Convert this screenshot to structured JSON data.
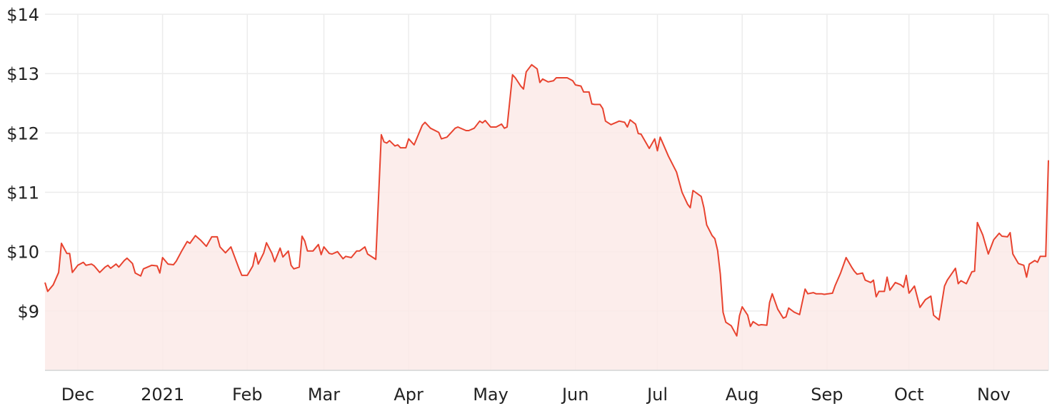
{
  "chart_data": {
    "type": "area",
    "title": "",
    "xlabel": "",
    "ylabel": "",
    "ylim": [
      8,
      14
    ],
    "y_ticks": [
      {
        "value": 9,
        "label": "$9"
      },
      {
        "value": 10,
        "label": "$10"
      },
      {
        "value": 11,
        "label": "$11"
      },
      {
        "value": 12,
        "label": "$12"
      },
      {
        "value": 13,
        "label": "$13"
      },
      {
        "value": 14,
        "label": "$14"
      }
    ],
    "x_ticks": [
      {
        "date": "2020-12-01",
        "label": "Dec"
      },
      {
        "date": "2021-01-01",
        "label": "2021"
      },
      {
        "date": "2021-02-01",
        "label": "Feb"
      },
      {
        "date": "2021-03-01",
        "label": "Mar"
      },
      {
        "date": "2021-04-01",
        "label": "Apr"
      },
      {
        "date": "2021-05-01",
        "label": "May"
      },
      {
        "date": "2021-06-01",
        "label": "Jun"
      },
      {
        "date": "2021-07-01",
        "label": "Jul"
      },
      {
        "date": "2021-08-01",
        "label": "Aug"
      },
      {
        "date": "2021-09-01",
        "label": "Sep"
      },
      {
        "date": "2021-10-01",
        "label": "Oct"
      },
      {
        "date": "2021-11-01",
        "label": "Nov"
      }
    ],
    "grid": true,
    "colors": {
      "line": "#e8432f",
      "fill": "#fbeae8",
      "grid": "#ececec",
      "axis": "#dddddd"
    },
    "points": [
      [
        "2020-11-19",
        9.48
      ],
      [
        "2020-11-20",
        9.33
      ],
      [
        "2020-11-22",
        9.44
      ],
      [
        "2020-11-24",
        9.65
      ],
      [
        "2020-11-25",
        10.14
      ],
      [
        "2020-11-27",
        9.97
      ],
      [
        "2020-11-28",
        9.97
      ],
      [
        "2020-11-29",
        9.65
      ],
      [
        "2020-12-01",
        9.77
      ],
      [
        "2020-12-03",
        9.82
      ],
      [
        "2020-12-04",
        9.77
      ],
      [
        "2020-12-06",
        9.79
      ],
      [
        "2020-12-07",
        9.76
      ],
      [
        "2020-12-09",
        9.65
      ],
      [
        "2020-12-11",
        9.74
      ],
      [
        "2020-12-12",
        9.77
      ],
      [
        "2020-12-13",
        9.72
      ],
      [
        "2020-12-15",
        9.79
      ],
      [
        "2020-12-16",
        9.74
      ],
      [
        "2020-12-18",
        9.85
      ],
      [
        "2020-12-19",
        9.89
      ],
      [
        "2020-12-21",
        9.8
      ],
      [
        "2020-12-22",
        9.64
      ],
      [
        "2020-12-24",
        9.59
      ],
      [
        "2020-12-25",
        9.71
      ],
      [
        "2020-12-28",
        9.77
      ],
      [
        "2020-12-30",
        9.76
      ],
      [
        "2020-12-31",
        9.64
      ],
      [
        "2021-01-01",
        9.9
      ],
      [
        "2021-01-03",
        9.79
      ],
      [
        "2021-01-05",
        9.78
      ],
      [
        "2021-01-06",
        9.84
      ],
      [
        "2021-01-08",
        10.01
      ],
      [
        "2021-01-10",
        10.17
      ],
      [
        "2021-01-11",
        10.14
      ],
      [
        "2021-01-13",
        10.27
      ],
      [
        "2021-01-15",
        10.19
      ],
      [
        "2021-01-17",
        10.09
      ],
      [
        "2021-01-19",
        10.25
      ],
      [
        "2021-01-21",
        10.25
      ],
      [
        "2021-01-22",
        10.08
      ],
      [
        "2021-01-24",
        9.98
      ],
      [
        "2021-01-26",
        10.08
      ],
      [
        "2021-01-29",
        9.71
      ],
      [
        "2021-01-30",
        9.6
      ],
      [
        "2021-02-01",
        9.6
      ],
      [
        "2021-02-03",
        9.76
      ],
      [
        "2021-02-04",
        9.98
      ],
      [
        "2021-02-05",
        9.79
      ],
      [
        "2021-02-07",
        9.98
      ],
      [
        "2021-02-08",
        10.15
      ],
      [
        "2021-02-10",
        9.97
      ],
      [
        "2021-02-11",
        9.83
      ],
      [
        "2021-02-13",
        10.06
      ],
      [
        "2021-02-14",
        9.91
      ],
      [
        "2021-02-16",
        10.01
      ],
      [
        "2021-02-17",
        9.77
      ],
      [
        "2021-02-18",
        9.71
      ],
      [
        "2021-02-20",
        9.74
      ],
      [
        "2021-02-21",
        10.26
      ],
      [
        "2021-02-22",
        10.18
      ],
      [
        "2021-02-23",
        10.01
      ],
      [
        "2021-02-25",
        10.01
      ],
      [
        "2021-02-27",
        10.12
      ],
      [
        "2021-02-28",
        9.95
      ],
      [
        "2021-03-01",
        10.08
      ],
      [
        "2021-03-03",
        9.97
      ],
      [
        "2021-03-04",
        9.96
      ],
      [
        "2021-03-06",
        10.0
      ],
      [
        "2021-03-08",
        9.88
      ],
      [
        "2021-03-09",
        9.92
      ],
      [
        "2021-03-11",
        9.9
      ],
      [
        "2021-03-13",
        10.01
      ],
      [
        "2021-03-14",
        10.01
      ],
      [
        "2021-03-16",
        10.08
      ],
      [
        "2021-03-17",
        9.96
      ],
      [
        "2021-03-19",
        9.9
      ],
      [
        "2021-03-20",
        9.87
      ],
      [
        "2021-03-22",
        11.97
      ],
      [
        "2021-03-23",
        11.85
      ],
      [
        "2021-03-24",
        11.83
      ],
      [
        "2021-03-25",
        11.87
      ],
      [
        "2021-03-27",
        11.78
      ],
      [
        "2021-03-28",
        11.8
      ],
      [
        "2021-03-29",
        11.75
      ],
      [
        "2021-03-31",
        11.75
      ],
      [
        "2021-04-01",
        11.9
      ],
      [
        "2021-04-03",
        11.8
      ],
      [
        "2021-04-06",
        12.13
      ],
      [
        "2021-04-07",
        12.18
      ],
      [
        "2021-04-09",
        12.08
      ],
      [
        "2021-04-12",
        12.01
      ],
      [
        "2021-04-13",
        11.9
      ],
      [
        "2021-04-15",
        11.93
      ],
      [
        "2021-04-18",
        12.08
      ],
      [
        "2021-04-19",
        12.1
      ],
      [
        "2021-04-22",
        12.04
      ],
      [
        "2021-04-23",
        12.04
      ],
      [
        "2021-04-25",
        12.08
      ],
      [
        "2021-04-27",
        12.2
      ],
      [
        "2021-04-28",
        12.17
      ],
      [
        "2021-04-29",
        12.21
      ],
      [
        "2021-05-01",
        12.1
      ],
      [
        "2021-05-03",
        12.1
      ],
      [
        "2021-05-05",
        12.15
      ],
      [
        "2021-05-06",
        12.08
      ],
      [
        "2021-05-07",
        12.1
      ],
      [
        "2021-05-09",
        12.98
      ],
      [
        "2021-05-10",
        12.93
      ],
      [
        "2021-05-12",
        12.79
      ],
      [
        "2021-05-13",
        12.74
      ],
      [
        "2021-05-14",
        13.03
      ],
      [
        "2021-05-16",
        13.15
      ],
      [
        "2021-05-18",
        13.08
      ],
      [
        "2021-05-19",
        12.85
      ],
      [
        "2021-05-20",
        12.91
      ],
      [
        "2021-05-22",
        12.86
      ],
      [
        "2021-05-24",
        12.88
      ],
      [
        "2021-05-25",
        12.93
      ],
      [
        "2021-05-29",
        12.93
      ],
      [
        "2021-05-31",
        12.88
      ],
      [
        "2021-06-01",
        12.81
      ],
      [
        "2021-06-03",
        12.79
      ],
      [
        "2021-06-04",
        12.69
      ],
      [
        "2021-06-06",
        12.69
      ],
      [
        "2021-06-07",
        12.49
      ],
      [
        "2021-06-08",
        12.48
      ],
      [
        "2021-06-10",
        12.48
      ],
      [
        "2021-06-11",
        12.41
      ],
      [
        "2021-06-12",
        12.2
      ],
      [
        "2021-06-14",
        12.14
      ],
      [
        "2021-06-16",
        12.18
      ],
      [
        "2021-06-17",
        12.2
      ],
      [
        "2021-06-19",
        12.18
      ],
      [
        "2021-06-20",
        12.1
      ],
      [
        "2021-06-21",
        12.22
      ],
      [
        "2021-06-23",
        12.15
      ],
      [
        "2021-06-24",
        11.99
      ],
      [
        "2021-06-25",
        11.98
      ],
      [
        "2021-06-28",
        11.74
      ],
      [
        "2021-06-30",
        11.9
      ],
      [
        "2021-07-01",
        11.7
      ],
      [
        "2021-07-02",
        11.93
      ],
      [
        "2021-07-05",
        11.61
      ],
      [
        "2021-07-08",
        11.34
      ],
      [
        "2021-07-10",
        11.0
      ],
      [
        "2021-07-12",
        10.8
      ],
      [
        "2021-07-13",
        10.74
      ],
      [
        "2021-07-14",
        11.03
      ],
      [
        "2021-07-17",
        10.93
      ],
      [
        "2021-07-18",
        10.74
      ],
      [
        "2021-07-19",
        10.45
      ],
      [
        "2021-07-21",
        10.27
      ],
      [
        "2021-07-22",
        10.22
      ],
      [
        "2021-07-23",
        10.02
      ],
      [
        "2021-07-24",
        9.62
      ],
      [
        "2021-07-25",
        8.98
      ],
      [
        "2021-07-26",
        8.81
      ],
      [
        "2021-07-28",
        8.75
      ],
      [
        "2021-07-30",
        8.58
      ],
      [
        "2021-07-31",
        8.92
      ],
      [
        "2021-08-01",
        9.07
      ],
      [
        "2021-08-03",
        8.93
      ],
      [
        "2021-08-04",
        8.74
      ],
      [
        "2021-08-05",
        8.82
      ],
      [
        "2021-08-07",
        8.76
      ],
      [
        "2021-08-08",
        8.77
      ],
      [
        "2021-08-10",
        8.76
      ],
      [
        "2021-08-11",
        9.14
      ],
      [
        "2021-08-12",
        9.29
      ],
      [
        "2021-08-14",
        9.03
      ],
      [
        "2021-08-16",
        8.88
      ],
      [
        "2021-08-17",
        8.9
      ],
      [
        "2021-08-18",
        9.05
      ],
      [
        "2021-08-20",
        8.98
      ],
      [
        "2021-08-22",
        8.94
      ],
      [
        "2021-08-24",
        9.37
      ],
      [
        "2021-08-25",
        9.29
      ],
      [
        "2021-08-27",
        9.31
      ],
      [
        "2021-08-28",
        9.29
      ],
      [
        "2021-08-30",
        9.29
      ],
      [
        "2021-08-31",
        9.28
      ],
      [
        "2021-09-03",
        9.3
      ],
      [
        "2021-09-04",
        9.43
      ],
      [
        "2021-09-06",
        9.64
      ],
      [
        "2021-09-08",
        9.9
      ],
      [
        "2021-09-10",
        9.74
      ],
      [
        "2021-09-11",
        9.67
      ],
      [
        "2021-09-12",
        9.62
      ],
      [
        "2021-09-14",
        9.64
      ],
      [
        "2021-09-15",
        9.52
      ],
      [
        "2021-09-17",
        9.48
      ],
      [
        "2021-09-18",
        9.52
      ],
      [
        "2021-09-19",
        9.24
      ],
      [
        "2021-09-20",
        9.33
      ],
      [
        "2021-09-22",
        9.33
      ],
      [
        "2021-09-23",
        9.57
      ],
      [
        "2021-09-24",
        9.35
      ],
      [
        "2021-09-26",
        9.48
      ],
      [
        "2021-09-28",
        9.44
      ],
      [
        "2021-09-29",
        9.4
      ],
      [
        "2021-09-30",
        9.6
      ],
      [
        "2021-10-01",
        9.3
      ],
      [
        "2021-10-03",
        9.42
      ],
      [
        "2021-10-05",
        9.06
      ],
      [
        "2021-10-07",
        9.19
      ],
      [
        "2021-10-09",
        9.25
      ],
      [
        "2021-10-10",
        8.93
      ],
      [
        "2021-10-12",
        8.85
      ],
      [
        "2021-10-14",
        9.42
      ],
      [
        "2021-10-15",
        9.52
      ],
      [
        "2021-10-18",
        9.72
      ],
      [
        "2021-10-19",
        9.46
      ],
      [
        "2021-10-20",
        9.51
      ],
      [
        "2021-10-22",
        9.46
      ],
      [
        "2021-10-24",
        9.66
      ],
      [
        "2021-10-25",
        9.67
      ],
      [
        "2021-10-26",
        10.49
      ],
      [
        "2021-10-28",
        10.28
      ],
      [
        "2021-10-29",
        10.12
      ],
      [
        "2021-10-30",
        9.96
      ],
      [
        "2021-11-01",
        10.2
      ],
      [
        "2021-11-03",
        10.31
      ],
      [
        "2021-11-04",
        10.26
      ],
      [
        "2021-11-06",
        10.25
      ],
      [
        "2021-11-07",
        10.32
      ],
      [
        "2021-11-08",
        9.96
      ],
      [
        "2021-11-10",
        9.8
      ],
      [
        "2021-11-12",
        9.77
      ],
      [
        "2021-11-13",
        9.57
      ],
      [
        "2021-11-14",
        9.79
      ],
      [
        "2021-11-16",
        9.85
      ],
      [
        "2021-11-17",
        9.82
      ],
      [
        "2021-11-18",
        9.92
      ],
      [
        "2021-11-20",
        9.92
      ],
      [
        "2021-11-21",
        11.54
      ]
    ]
  }
}
